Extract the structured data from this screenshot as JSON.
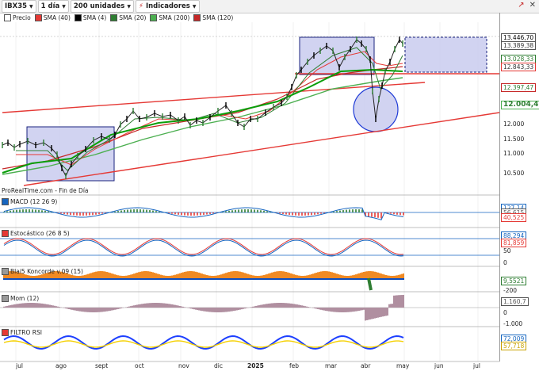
{
  "toolbar": {
    "symbol": "IBX35",
    "period": "1 día",
    "units": "200 unidades",
    "indicators_label": "Indicadores"
  },
  "legend": [
    {
      "label": "Precio",
      "color": "#ffffff"
    },
    {
      "label": "SMA (40)",
      "color": "#e53935"
    },
    {
      "label": "SMA (4)",
      "color": "#000000"
    },
    {
      "label": "SMA (20)",
      "color": "#2e7d32"
    },
    {
      "label": "SMA (200)",
      "color": "#4caf50"
    },
    {
      "label": "SMA (120)",
      "color": "#c62828"
    }
  ],
  "price_axis": {
    "ticks": [
      "13.000",
      "12.500",
      "12.000",
      "11.500",
      "11.000",
      "10.500"
    ],
    "tags": {
      "last": "13.446,70",
      "sma4": "13.389,38",
      "sma20": "13.028,33",
      "sma40": "12.843,33",
      "sma120": "12.397,47",
      "sma200": "12.004,46"
    }
  },
  "watermark": "ProRealTime.com - Fin de Día",
  "panels": {
    "macd": {
      "title": "MACD (12 26 9)",
      "tags": [
        "127,14",
        "56,615",
        "40,525"
      ]
    },
    "stoch": {
      "title": "Estocástico (26 8 5)",
      "tags": [
        "88,294",
        "81,859"
      ],
      "ticks": [
        "50",
        "0"
      ]
    },
    "blai5": {
      "title": "Blai5 Koncorde v.09 (15)",
      "tags": [
        "9,5521"
      ],
      "ticks": [
        "-200"
      ]
    },
    "mom": {
      "title": "Mom (12)",
      "tags": [
        "1.160,7"
      ],
      "ticks": [
        "0",
        "-1.000"
      ]
    },
    "rsi": {
      "title": "FILTRO RSI",
      "tags": [
        "72,009",
        "57,718"
      ]
    }
  },
  "x_axis": {
    "months": [
      "jul",
      "ago",
      "sept",
      "oct",
      "nov",
      "dic",
      "2025",
      "feb",
      "mar",
      "abr",
      "may",
      "jun",
      "jul"
    ]
  },
  "colors": {
    "up": "#2e7d32",
    "down": "#000000",
    "box_fill": "#c5c8ee",
    "box_border": "#1a237e",
    "trend": "#e53935"
  }
}
